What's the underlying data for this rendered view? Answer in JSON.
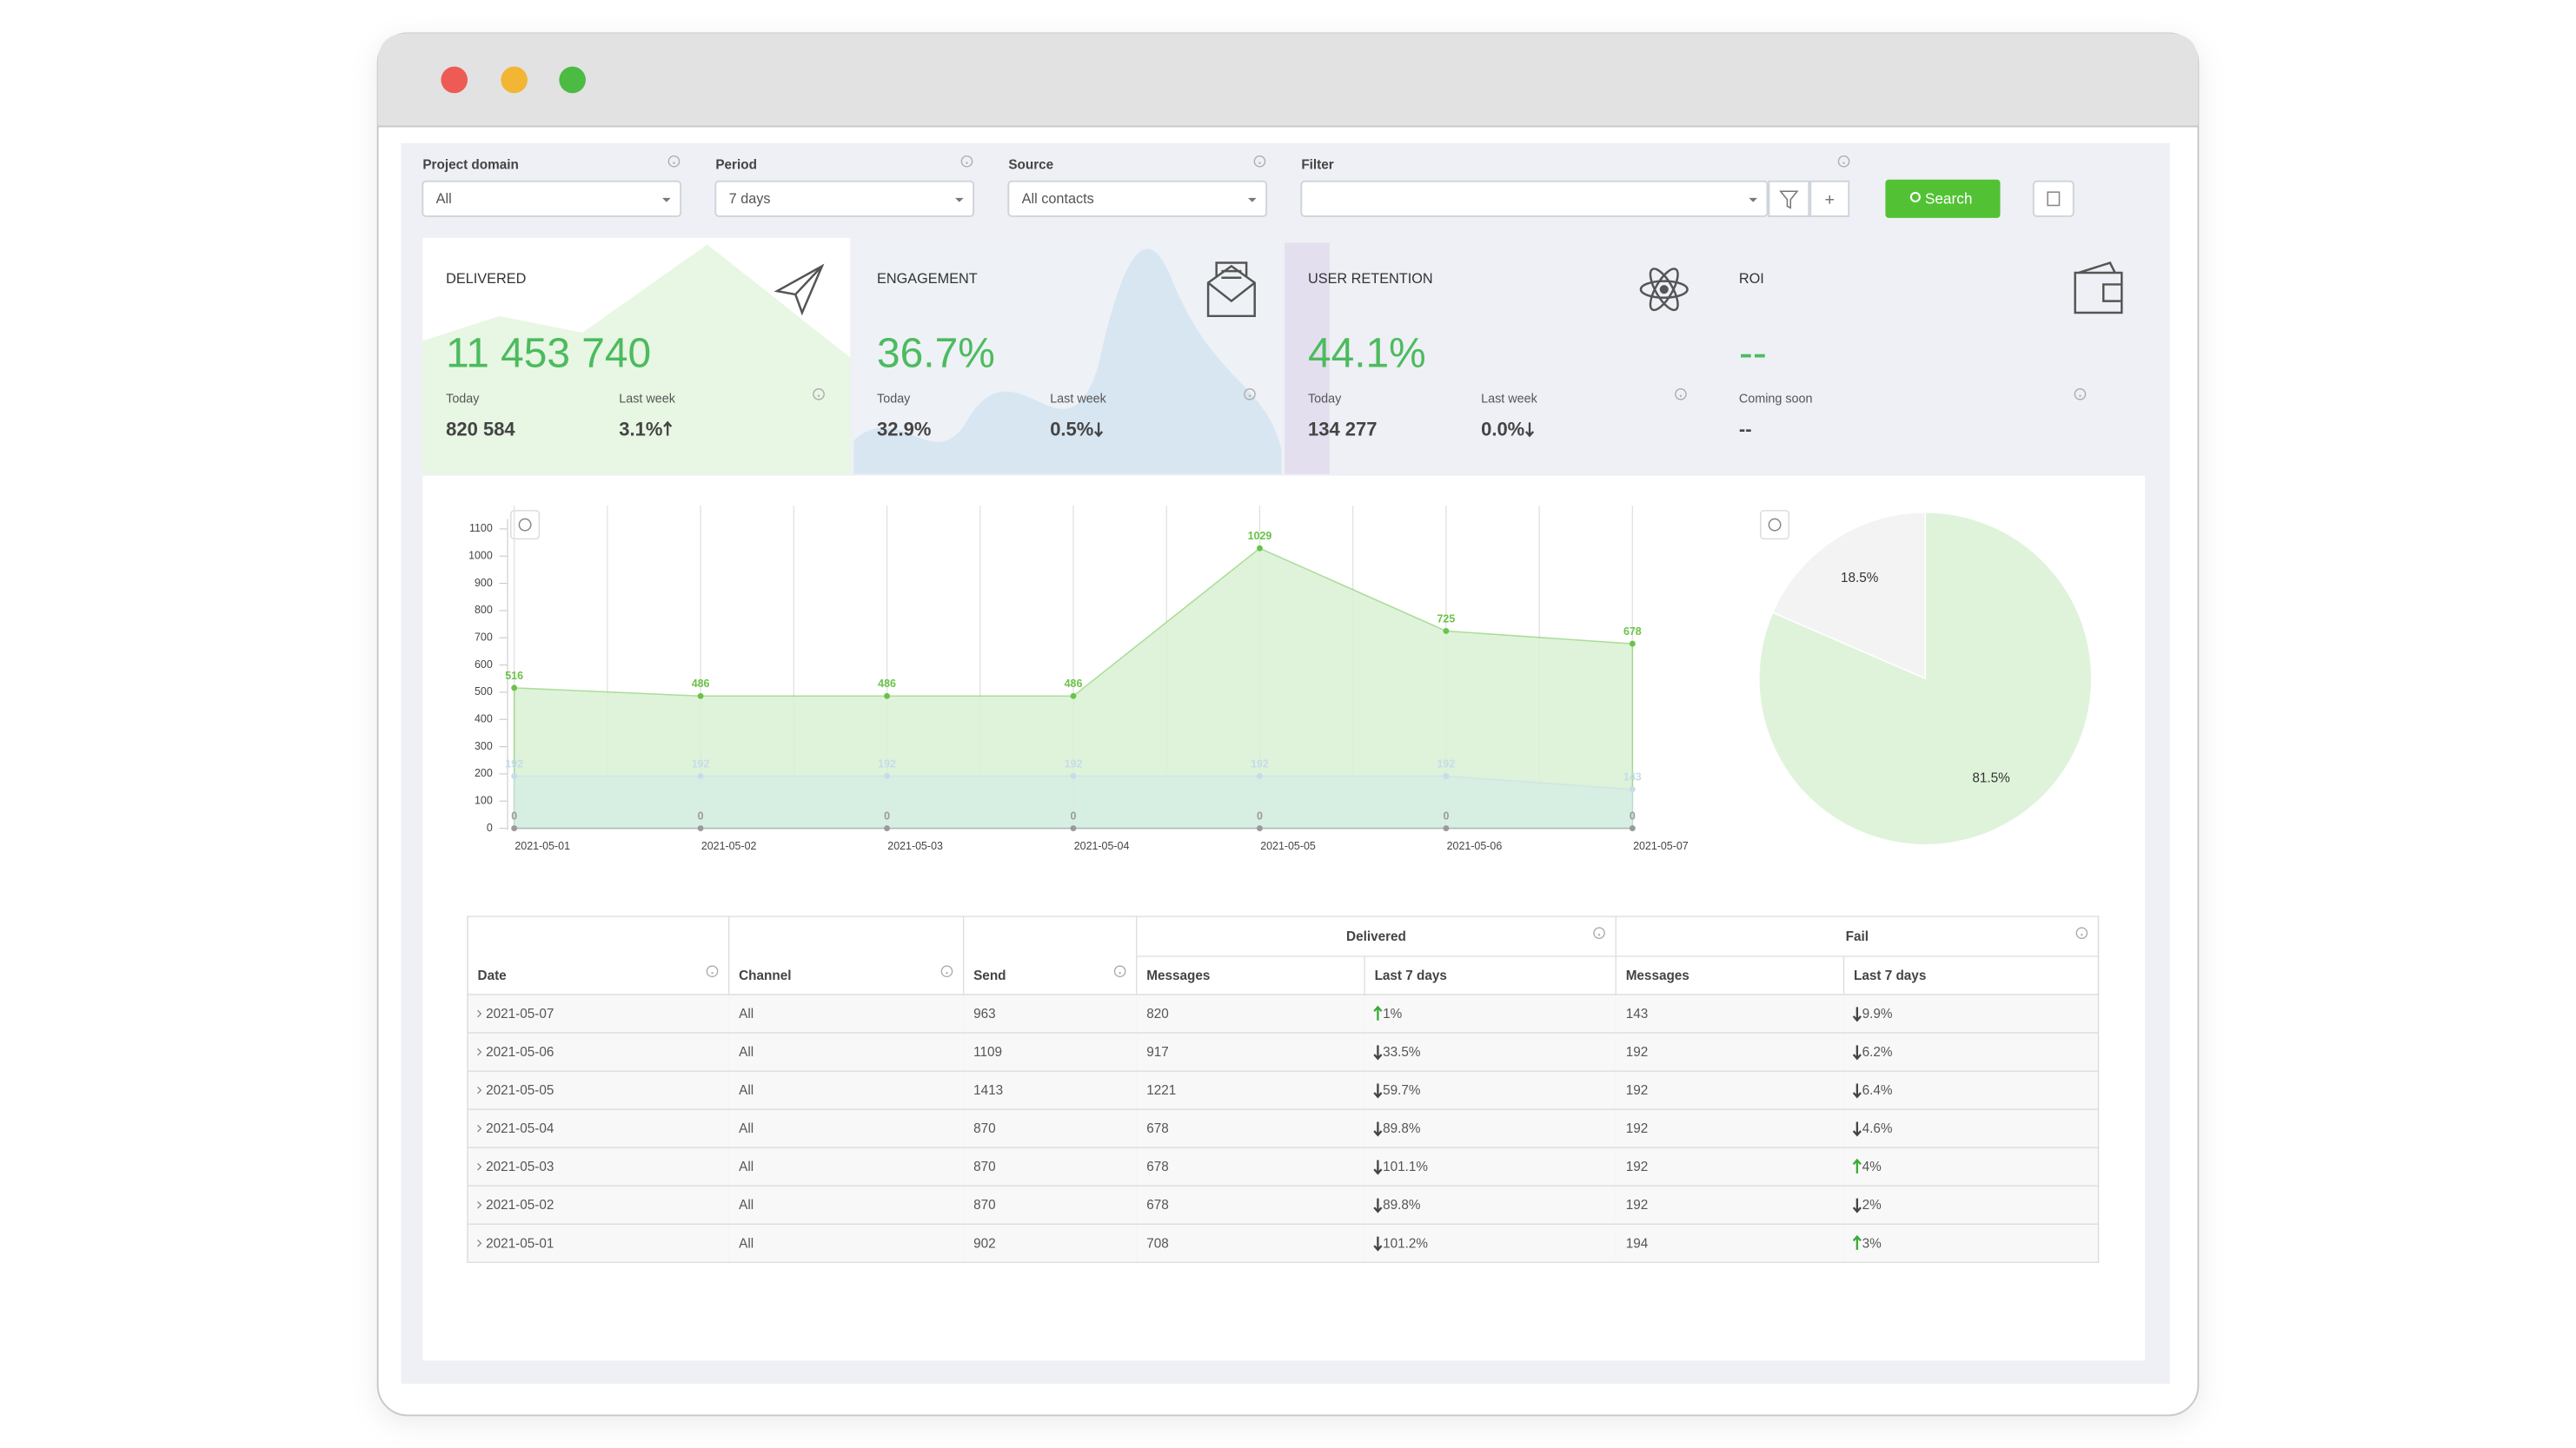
{
  "filters": [
    {
      "label": "Project domain",
      "value": "All"
    },
    {
      "label": "Period",
      "value": "7 days"
    },
    {
      "label": "Source",
      "value": "All contacts"
    },
    {
      "label": "Filter"
    }
  ],
  "search_button": "Search",
  "cards": [
    {
      "title": "DELIVERED",
      "value": "11 453 740",
      "today_label": "Today",
      "today": "820 584",
      "week_label": "Last week",
      "week": "3.1%",
      "week_trend": "up"
    },
    {
      "title": "ENGAGEMENT",
      "value": "36.7%",
      "today_label": "Today",
      "today": "32.9%",
      "week_label": "Last week",
      "week": "0.5%",
      "week_trend": "down"
    },
    {
      "title": "USER RETENTION",
      "value": "44.1%",
      "today_label": "Today",
      "today": "134 277",
      "week_label": "Last week",
      "week": "0.0%",
      "week_trend": "down"
    },
    {
      "title": "ROI",
      "value": "--",
      "today_label": "Coming soon",
      "today": "--"
    }
  ],
  "chart_data": [
    {
      "type": "area",
      "x": [
        "2021-05-01",
        "2021-05-02",
        "2021-05-03",
        "2021-05-04",
        "2021-05-05",
        "2021-05-06",
        "2021-05-07"
      ],
      "series": [
        {
          "color": "#6cc24a",
          "values": [
            516,
            486,
            486,
            486,
            1029,
            725,
            678
          ]
        },
        {
          "color": "#c6dcea",
          "values": [
            192,
            192,
            192,
            192,
            192,
            192,
            143
          ]
        },
        {
          "color": "#9a9a9a",
          "values": [
            0,
            0,
            0,
            0,
            0,
            0,
            0
          ]
        }
      ],
      "ylim": [
        0,
        1100
      ],
      "yticks": [
        0,
        100,
        200,
        300,
        400,
        500,
        600,
        700,
        800,
        900,
        1000,
        1100
      ],
      "grid": true
    },
    {
      "type": "pie",
      "values": [
        18.5,
        81.5
      ],
      "value_labels": [
        "18.5%",
        "81.5%"
      ],
      "colors": [
        "#f3f3f3",
        "#dff3da"
      ]
    }
  ],
  "table": {
    "group_headers": [
      "Delivered",
      "Fail"
    ],
    "headers": [
      "Date",
      "Channel",
      "Send",
      "Messages",
      "Last 7 days",
      "Messages",
      "Last 7 days"
    ],
    "rows": [
      [
        "2021-05-07",
        "All",
        963,
        820,
        "1%",
        143,
        "9.9%"
      ],
      [
        "2021-05-06",
        "All",
        1109,
        917,
        "33.5%",
        192,
        "6.2%"
      ],
      [
        "2021-05-05",
        "All",
        1413,
        1221,
        "59.7%",
        192,
        "6.4%"
      ],
      [
        "2021-05-04",
        "All",
        870,
        678,
        "89.8%",
        192,
        "4.6%"
      ],
      [
        "2021-05-03",
        "All",
        870,
        678,
        "101.1%",
        192,
        "4%"
      ],
      [
        "2021-05-02",
        "All",
        870,
        678,
        "89.8%",
        192,
        "2%"
      ],
      [
        "2021-05-01",
        "All",
        902,
        708,
        "101.2%",
        194,
        "3%"
      ]
    ],
    "trends": [
      [
        "up",
        "down"
      ],
      [
        "down",
        "down"
      ],
      [
        "down",
        "down"
      ],
      [
        "down",
        "down"
      ],
      [
        "down",
        "up"
      ],
      [
        "down",
        "down"
      ],
      [
        "down",
        "up"
      ]
    ]
  }
}
